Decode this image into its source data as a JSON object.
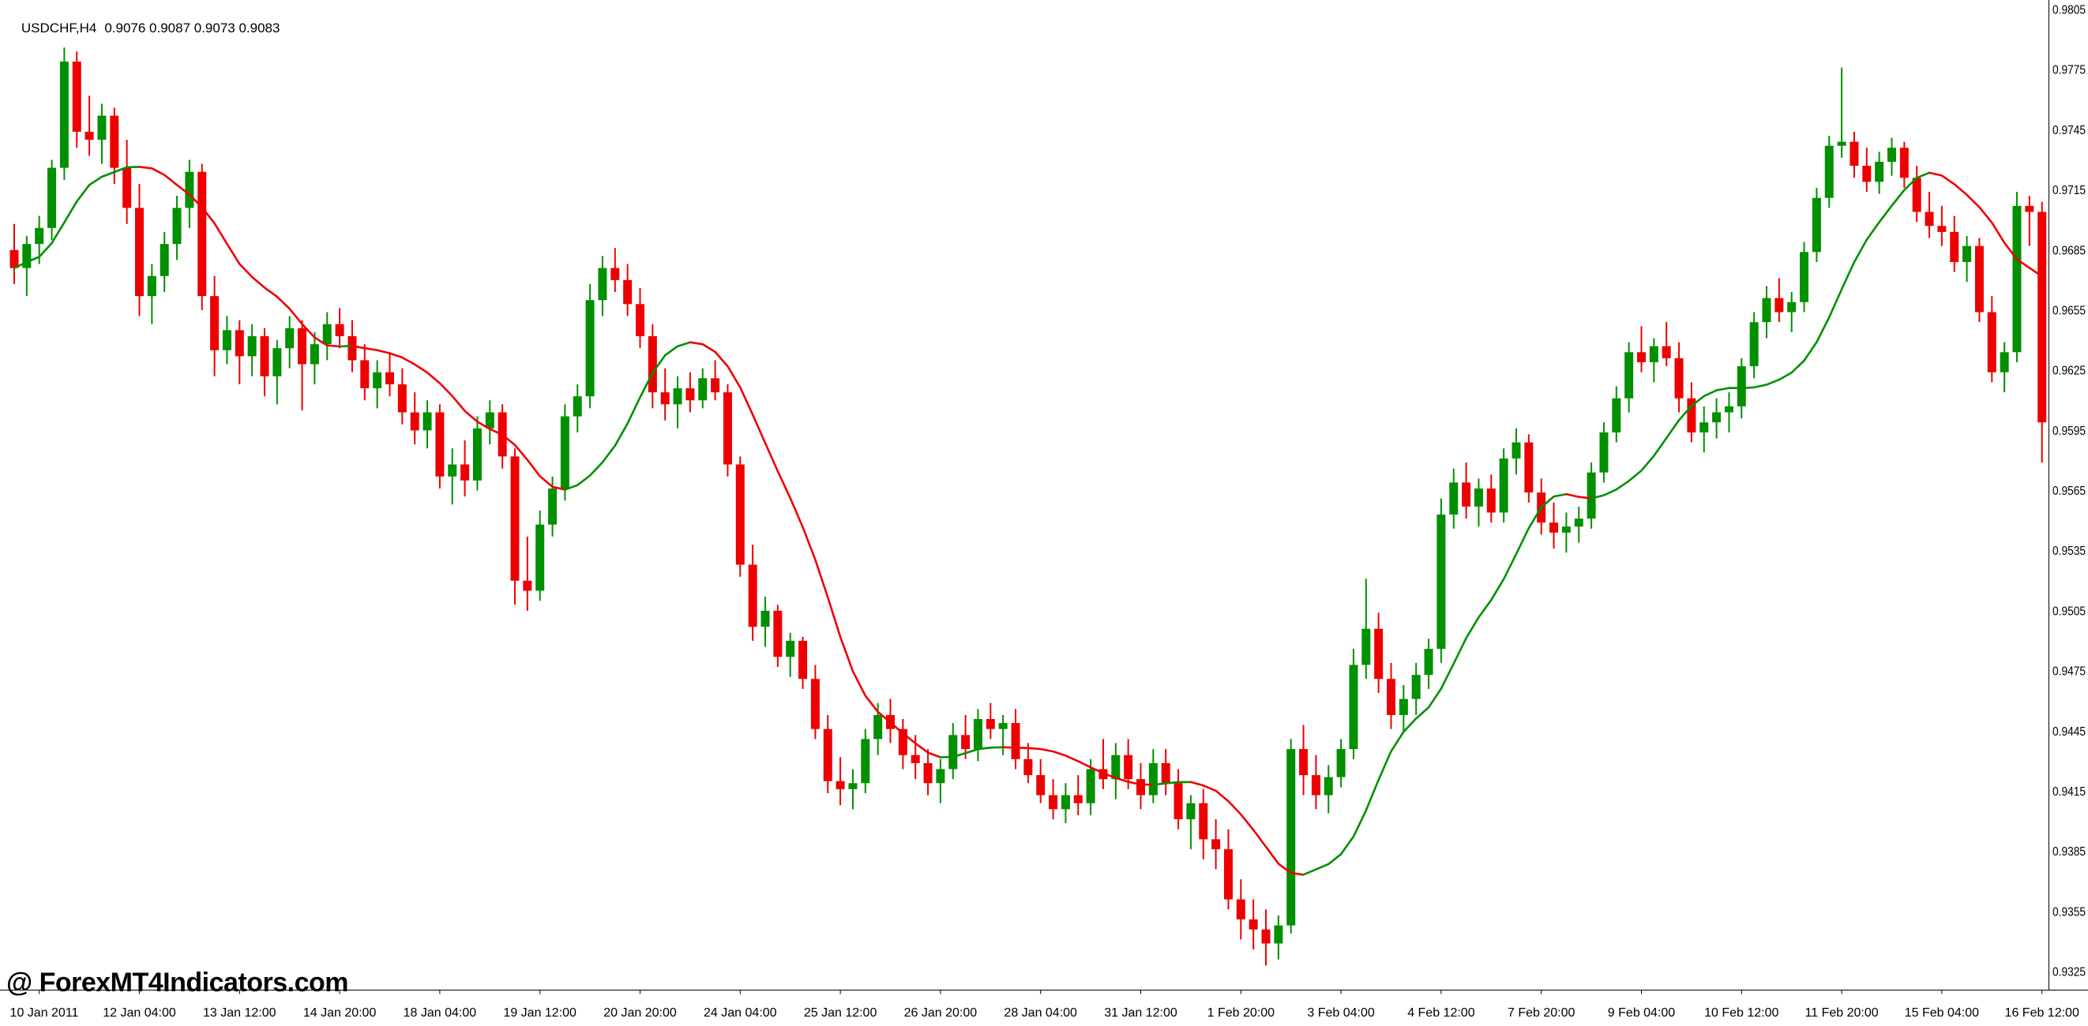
{
  "header": {
    "symbol": "USDCHF,H4",
    "quotes": "0.9076 0.9087 0.9073 0.9083"
  },
  "watermark": {
    "text": "@ ForexMT4Indicators.com"
  },
  "chart_data": {
    "type": "candlestick",
    "symbol": "USDCHF",
    "timeframe": "H4",
    "colors": {
      "bull": "#009000",
      "bear": "#EE0000",
      "background": "#FFFFFF",
      "axis_text": "#000000",
      "axis_line": "#000000"
    },
    "indicator": {
      "name": "color-moving-average",
      "period": 9,
      "smoothing": 3,
      "up_color": "#009000",
      "down_color": "#EE0000"
    },
    "price_axis": {
      "min": 0.9325,
      "max": 0.9805,
      "step": 0.003,
      "labels": [
        "0.9805",
        "0.9775",
        "0.9745",
        "0.9715",
        "0.9685",
        "0.9655",
        "0.9625",
        "0.9595",
        "0.9565",
        "0.9535",
        "0.9505",
        "0.9475",
        "0.9445",
        "0.9415",
        "0.9385",
        "0.9355",
        "0.9325"
      ]
    },
    "time_axis": [
      {
        "label": "10 Jan 2011",
        "bar": 2
      },
      {
        "label": "12 Jan 04:00",
        "bar": 10
      },
      {
        "label": "13 Jan 12:00",
        "bar": 18
      },
      {
        "label": "14 Jan 20:00",
        "bar": 26
      },
      {
        "label": "18 Jan 04:00",
        "bar": 34
      },
      {
        "label": "19 Jan 12:00",
        "bar": 42
      },
      {
        "label": "20 Jan 20:00",
        "bar": 50
      },
      {
        "label": "24 Jan 04:00",
        "bar": 58
      },
      {
        "label": "25 Jan 12:00",
        "bar": 66
      },
      {
        "label": "26 Jan 20:00",
        "bar": 74
      },
      {
        "label": "28 Jan 04:00",
        "bar": 82
      },
      {
        "label": "31 Jan 12:00",
        "bar": 90
      },
      {
        "label": "1 Feb 20:00",
        "bar": 98
      },
      {
        "label": "3 Feb 04:00",
        "bar": 106
      },
      {
        "label": "4 Feb 12:00",
        "bar": 114
      },
      {
        "label": "7 Feb 20:00",
        "bar": 122
      },
      {
        "label": "9 Feb 04:00",
        "bar": 130
      },
      {
        "label": "10 Feb 12:00",
        "bar": 138
      },
      {
        "label": "11 Feb 20:00",
        "bar": 146
      },
      {
        "label": "15 Feb 04:00",
        "bar": 154
      },
      {
        "label": "16 Feb 12:00",
        "bar": 162
      }
    ],
    "bars": [
      [
        0.9685,
        0.9698,
        0.9668,
        0.9676
      ],
      [
        0.9676,
        0.9692,
        0.9662,
        0.9688
      ],
      [
        0.9688,
        0.9702,
        0.9678,
        0.9696
      ],
      [
        0.9696,
        0.973,
        0.969,
        0.9726
      ],
      [
        0.9726,
        0.9786,
        0.972,
        0.9779
      ],
      [
        0.9779,
        0.9784,
        0.9736,
        0.9744
      ],
      [
        0.9744,
        0.9762,
        0.9732,
        0.974
      ],
      [
        0.974,
        0.9758,
        0.9728,
        0.9752
      ],
      [
        0.9752,
        0.9756,
        0.9718,
        0.9726
      ],
      [
        0.9726,
        0.974,
        0.9698,
        0.9706
      ],
      [
        0.9706,
        0.9718,
        0.9652,
        0.9662
      ],
      [
        0.9662,
        0.9678,
        0.9648,
        0.9672
      ],
      [
        0.9672,
        0.9694,
        0.9664,
        0.9688
      ],
      [
        0.9688,
        0.9712,
        0.968,
        0.9706
      ],
      [
        0.9706,
        0.973,
        0.9696,
        0.9724
      ],
      [
        0.9724,
        0.9728,
        0.9655,
        0.9662
      ],
      [
        0.9662,
        0.9672,
        0.9622,
        0.9635
      ],
      [
        0.9635,
        0.9652,
        0.9628,
        0.9645
      ],
      [
        0.9645,
        0.965,
        0.9618,
        0.9632
      ],
      [
        0.9632,
        0.9648,
        0.9622,
        0.9642
      ],
      [
        0.9642,
        0.9646,
        0.9612,
        0.9622
      ],
      [
        0.9622,
        0.964,
        0.9608,
        0.9636
      ],
      [
        0.9636,
        0.9652,
        0.9626,
        0.9646
      ],
      [
        0.9646,
        0.965,
        0.9605,
        0.9628
      ],
      [
        0.9628,
        0.9644,
        0.9618,
        0.9638
      ],
      [
        0.9638,
        0.9654,
        0.963,
        0.9648
      ],
      [
        0.9648,
        0.9656,
        0.9636,
        0.9642
      ],
      [
        0.9642,
        0.965,
        0.9624,
        0.963
      ],
      [
        0.963,
        0.9638,
        0.961,
        0.9616
      ],
      [
        0.9616,
        0.963,
        0.9606,
        0.9624
      ],
      [
        0.9624,
        0.9634,
        0.9612,
        0.9618
      ],
      [
        0.9618,
        0.9626,
        0.9598,
        0.9604
      ],
      [
        0.9604,
        0.9614,
        0.9588,
        0.9595
      ],
      [
        0.9595,
        0.961,
        0.9586,
        0.9604
      ],
      [
        0.9604,
        0.9608,
        0.9566,
        0.9572
      ],
      [
        0.9572,
        0.9586,
        0.9558,
        0.9578
      ],
      [
        0.9578,
        0.959,
        0.9562,
        0.957
      ],
      [
        0.957,
        0.9602,
        0.9565,
        0.9596
      ],
      [
        0.9596,
        0.961,
        0.9588,
        0.9604
      ],
      [
        0.9604,
        0.9608,
        0.9576,
        0.9582
      ],
      [
        0.9582,
        0.9586,
        0.9508,
        0.952
      ],
      [
        0.952,
        0.9542,
        0.9505,
        0.9515
      ],
      [
        0.9515,
        0.9555,
        0.951,
        0.9548
      ],
      [
        0.9548,
        0.9572,
        0.9542,
        0.9566
      ],
      [
        0.9566,
        0.9608,
        0.956,
        0.9602
      ],
      [
        0.9602,
        0.9618,
        0.9594,
        0.9612
      ],
      [
        0.9612,
        0.9668,
        0.9606,
        0.966
      ],
      [
        0.966,
        0.9682,
        0.9652,
        0.9676
      ],
      [
        0.9676,
        0.9686,
        0.9664,
        0.967
      ],
      [
        0.967,
        0.9678,
        0.9652,
        0.9658
      ],
      [
        0.9658,
        0.9666,
        0.9636,
        0.9642
      ],
      [
        0.9642,
        0.9648,
        0.9606,
        0.9614
      ],
      [
        0.9614,
        0.9626,
        0.96,
        0.9608
      ],
      [
        0.9608,
        0.9622,
        0.9596,
        0.9616
      ],
      [
        0.9616,
        0.9624,
        0.9604,
        0.961
      ],
      [
        0.961,
        0.9626,
        0.9606,
        0.9621
      ],
      [
        0.9621,
        0.963,
        0.961,
        0.9614
      ],
      [
        0.9614,
        0.9618,
        0.9572,
        0.9578
      ],
      [
        0.9578,
        0.9582,
        0.9522,
        0.9528
      ],
      [
        0.9528,
        0.9538,
        0.949,
        0.9497
      ],
      [
        0.9497,
        0.9512,
        0.9487,
        0.9505
      ],
      [
        0.9505,
        0.9508,
        0.9477,
        0.9482
      ],
      [
        0.9482,
        0.9494,
        0.9472,
        0.949
      ],
      [
        0.949,
        0.9492,
        0.9466,
        0.9471
      ],
      [
        0.9471,
        0.9478,
        0.9441,
        0.9446
      ],
      [
        0.9446,
        0.9453,
        0.9414,
        0.942
      ],
      [
        0.942,
        0.9432,
        0.9408,
        0.9416
      ],
      [
        0.9416,
        0.9426,
        0.9406,
        0.9419
      ],
      [
        0.9419,
        0.9446,
        0.9414,
        0.9441
      ],
      [
        0.9441,
        0.9459,
        0.9433,
        0.9453
      ],
      [
        0.9453,
        0.9461,
        0.9439,
        0.9446
      ],
      [
        0.9446,
        0.9451,
        0.9426,
        0.9433
      ],
      [
        0.9433,
        0.9443,
        0.9421,
        0.9429
      ],
      [
        0.9429,
        0.9436,
        0.9413,
        0.9419
      ],
      [
        0.9419,
        0.9431,
        0.9409,
        0.9426
      ],
      [
        0.9426,
        0.9449,
        0.9421,
        0.9443
      ],
      [
        0.9443,
        0.9453,
        0.9431,
        0.9436
      ],
      [
        0.9436,
        0.9456,
        0.943,
        0.9451
      ],
      [
        0.9451,
        0.9459,
        0.9441,
        0.9446
      ],
      [
        0.9446,
        0.9453,
        0.9433,
        0.9449
      ],
      [
        0.9449,
        0.9456,
        0.9426,
        0.9431
      ],
      [
        0.9431,
        0.9439,
        0.9419,
        0.9423
      ],
      [
        0.9423,
        0.9431,
        0.9409,
        0.9413
      ],
      [
        0.9413,
        0.9421,
        0.9401,
        0.9406
      ],
      [
        0.9406,
        0.9419,
        0.9399,
        0.9413
      ],
      [
        0.9413,
        0.9423,
        0.9403,
        0.9409
      ],
      [
        0.9409,
        0.9431,
        0.9403,
        0.9426
      ],
      [
        0.9426,
        0.9441,
        0.9416,
        0.9421
      ],
      [
        0.9421,
        0.9439,
        0.9411,
        0.9433
      ],
      [
        0.9433,
        0.9441,
        0.9416,
        0.9421
      ],
      [
        0.9421,
        0.9429,
        0.9406,
        0.9413
      ],
      [
        0.9413,
        0.9436,
        0.9409,
        0.9429
      ],
      [
        0.9429,
        0.9436,
        0.9413,
        0.9419
      ],
      [
        0.9419,
        0.9426,
        0.9396,
        0.9401
      ],
      [
        0.9401,
        0.9413,
        0.9386,
        0.9409
      ],
      [
        0.9409,
        0.9416,
        0.9381,
        0.9391
      ],
      [
        0.9391,
        0.9401,
        0.9376,
        0.9386
      ],
      [
        0.9386,
        0.9396,
        0.9356,
        0.9361
      ],
      [
        0.9361,
        0.9371,
        0.9341,
        0.9351
      ],
      [
        0.9351,
        0.9361,
        0.9336,
        0.9346
      ],
      [
        0.9346,
        0.9356,
        0.9328,
        0.9339
      ],
      [
        0.9339,
        0.9353,
        0.9331,
        0.9348
      ],
      [
        0.9348,
        0.9441,
        0.9344,
        0.9436
      ],
      [
        0.9436,
        0.9448,
        0.9413,
        0.9423
      ],
      [
        0.9423,
        0.9433,
        0.9406,
        0.9413
      ],
      [
        0.9413,
        0.9428,
        0.9404,
        0.9422
      ],
      [
        0.9422,
        0.9441,
        0.9417,
        0.9436
      ],
      [
        0.9436,
        0.9486,
        0.9431,
        0.9478
      ],
      [
        0.9478,
        0.9521,
        0.9471,
        0.9496
      ],
      [
        0.9496,
        0.9504,
        0.9464,
        0.9471
      ],
      [
        0.9471,
        0.9479,
        0.9446,
        0.9453
      ],
      [
        0.9453,
        0.9468,
        0.9444,
        0.9461
      ],
      [
        0.9461,
        0.9479,
        0.9453,
        0.9473
      ],
      [
        0.9473,
        0.9491,
        0.9466,
        0.9486
      ],
      [
        0.9486,
        0.9561,
        0.9479,
        0.9553
      ],
      [
        0.9553,
        0.9576,
        0.9546,
        0.9569
      ],
      [
        0.9569,
        0.9579,
        0.9551,
        0.9557
      ],
      [
        0.9557,
        0.9571,
        0.9547,
        0.9566
      ],
      [
        0.9566,
        0.9573,
        0.9549,
        0.9554
      ],
      [
        0.9554,
        0.9586,
        0.9549,
        0.9581
      ],
      [
        0.9581,
        0.9596,
        0.9573,
        0.9589
      ],
      [
        0.9589,
        0.9593,
        0.9559,
        0.9564
      ],
      [
        0.9564,
        0.9571,
        0.9543,
        0.9549
      ],
      [
        0.9549,
        0.9559,
        0.9536,
        0.9544
      ],
      [
        0.9544,
        0.9554,
        0.9534,
        0.9547
      ],
      [
        0.9547,
        0.9557,
        0.9539,
        0.9551
      ],
      [
        0.9551,
        0.9579,
        0.9546,
        0.9574
      ],
      [
        0.9574,
        0.9599,
        0.9569,
        0.9594
      ],
      [
        0.9594,
        0.9617,
        0.9589,
        0.9611
      ],
      [
        0.9611,
        0.9639,
        0.9604,
        0.9634
      ],
      [
        0.9634,
        0.9647,
        0.9624,
        0.9629
      ],
      [
        0.9629,
        0.9641,
        0.9619,
        0.9637
      ],
      [
        0.9637,
        0.9649,
        0.9627,
        0.9631
      ],
      [
        0.9631,
        0.9639,
        0.9604,
        0.9611
      ],
      [
        0.9611,
        0.9619,
        0.9589,
        0.9594
      ],
      [
        0.9594,
        0.9607,
        0.9584,
        0.9599
      ],
      [
        0.9599,
        0.9611,
        0.9591,
        0.9604
      ],
      [
        0.9604,
        0.9614,
        0.9594,
        0.9607
      ],
      [
        0.9607,
        0.9631,
        0.9601,
        0.9627
      ],
      [
        0.9627,
        0.9654,
        0.9621,
        0.9649
      ],
      [
        0.9649,
        0.9667,
        0.9641,
        0.9661
      ],
      [
        0.9661,
        0.9671,
        0.9649,
        0.9654
      ],
      [
        0.9654,
        0.9664,
        0.9644,
        0.9659
      ],
      [
        0.9659,
        0.9689,
        0.9654,
        0.9684
      ],
      [
        0.9684,
        0.9716,
        0.9679,
        0.9711
      ],
      [
        0.9711,
        0.9742,
        0.9706,
        0.9737
      ],
      [
        0.9737,
        0.9776,
        0.9731,
        0.9739
      ],
      [
        0.9739,
        0.9744,
        0.9721,
        0.9727
      ],
      [
        0.9727,
        0.9736,
        0.9714,
        0.9719
      ],
      [
        0.9719,
        0.9734,
        0.9713,
        0.9729
      ],
      [
        0.9729,
        0.9741,
        0.9722,
        0.9736
      ],
      [
        0.9736,
        0.9739,
        0.9716,
        0.9721
      ],
      [
        0.9721,
        0.9727,
        0.9699,
        0.9704
      ],
      [
        0.9704,
        0.9714,
        0.9691,
        0.9697
      ],
      [
        0.9697,
        0.9707,
        0.9687,
        0.9694
      ],
      [
        0.9694,
        0.9702,
        0.9674,
        0.9679
      ],
      [
        0.9679,
        0.9692,
        0.9669,
        0.9687
      ],
      [
        0.9687,
        0.9691,
        0.9649,
        0.9654
      ],
      [
        0.9654,
        0.9662,
        0.9619,
        0.9624
      ],
      [
        0.9624,
        0.9639,
        0.9614,
        0.9634
      ],
      [
        0.9634,
        0.9714,
        0.9629,
        0.9707
      ],
      [
        0.9707,
        0.9712,
        0.9687,
        0.9704
      ],
      [
        0.9704,
        0.9709,
        0.9579,
        0.9599
      ]
    ]
  }
}
